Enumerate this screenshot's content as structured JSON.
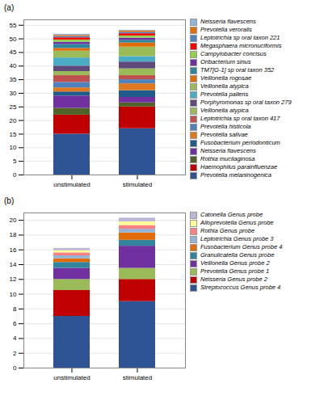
{
  "chart_data": [
    {
      "type": "bar",
      "title": "(a)",
      "stacked": true,
      "grid": true,
      "legend": "right",
      "categories": [
        "unstimulated",
        "stimulated"
      ],
      "ylim": [
        0,
        57
      ],
      "yticks": [
        0,
        5,
        10,
        15,
        20,
        25,
        30,
        35,
        40,
        45,
        50,
        55
      ],
      "series": [
        {
          "name": "Prevotella melaninogenica",
          "color": "#2F5496",
          "values": [
            15.0,
            17.0
          ]
        },
        {
          "name": "Haemophilus parainfluenzae",
          "color": "#C00000",
          "values": [
            7.0,
            8.0
          ]
        },
        {
          "name": "Rothia mucilaginosa",
          "color": "#4F6228",
          "values": [
            2.5,
            1.5
          ]
        },
        {
          "name": "Neisseria flavescens",
          "color": "#7030A0",
          "values": [
            4.5,
            2.0
          ]
        },
        {
          "name": "Fusobacterium periodonticum",
          "color": "#1F5C8B",
          "values": [
            1.5,
            2.5
          ]
        },
        {
          "name": "Prevotella salivae",
          "color": "#E07820",
          "values": [
            1.5,
            2.5
          ]
        },
        {
          "name": "Prevotella histicola",
          "color": "#4F81BD",
          "values": [
            2.0,
            1.5
          ]
        },
        {
          "name": "Leptotrichia sp oral taxon 417",
          "color": "#C0504D",
          "values": [
            2.5,
            1.5
          ]
        },
        {
          "name": "Veillonella atypica",
          "color": "#9BBB59",
          "values": [
            1.5,
            2.5
          ]
        },
        {
          "name": "Porphyromonas sp oral taxon 279",
          "color": "#604A7B",
          "values": [
            2.0,
            2.5
          ]
        },
        {
          "name": "Prevotella pallens",
          "color": "#4BACC6",
          "values": [
            3.0,
            2.0
          ]
        },
        {
          "name": "Veillonella atypica",
          "color": "#9BBB59",
          "values": [
            2.5,
            3.5
          ]
        },
        {
          "name": "Veillonella rogosae",
          "color": "#E26B0A",
          "values": [
            1.0,
            1.5
          ]
        },
        {
          "name": "TM7[G-1] sp oral taxon 352",
          "color": "#31849B",
          "values": [
            1.5,
            1.0
          ]
        },
        {
          "name": "Oribacterium sinus",
          "color": "#7030A0",
          "values": [
            0.8,
            0.8
          ]
        },
        {
          "name": "Campylobacter concisus",
          "color": "#92D050",
          "values": [
            0.8,
            0.8
          ]
        },
        {
          "name": "Megasphaera micronuciformis",
          "color": "#FF0000",
          "values": [
            0.8,
            0.8
          ]
        },
        {
          "name": "Leptotrichia sp oral taxon 221",
          "color": "#4F81BD",
          "values": [
            0.5,
            0.5
          ]
        },
        {
          "name": "Prevotella veroralis",
          "color": "#E26B0A",
          "values": [
            0.4,
            0.5
          ]
        },
        {
          "name": "Neisseria flavescens",
          "color": "#95B3D7",
          "values": [
            0.4,
            0.3
          ]
        }
      ]
    },
    {
      "type": "bar",
      "title": "(b)",
      "stacked": true,
      "grid": true,
      "legend": "right",
      "categories": [
        "unstimulated",
        "stimulated"
      ],
      "ylim": [
        0,
        21
      ],
      "yticks": [
        0,
        2,
        4,
        6,
        8,
        10,
        12,
        14,
        16,
        18,
        20
      ],
      "series": [
        {
          "name": "Streptococcus Genus probe 4",
          "color": "#2F5496",
          "values": [
            7.0,
            9.0
          ]
        },
        {
          "name": "Neisseria Genus probe 2",
          "color": "#C00000",
          "values": [
            3.5,
            3.0
          ]
        },
        {
          "name": "Prevotella Genus probe 1",
          "color": "#9BBB59",
          "values": [
            1.5,
            1.5
          ]
        },
        {
          "name": "Veillonella Genus probe 2",
          "color": "#7030A0",
          "values": [
            1.5,
            3.0
          ]
        },
        {
          "name": "Granulicatella Genus probe",
          "color": "#31849B",
          "values": [
            0.8,
            0.8
          ]
        },
        {
          "name": "Fusobacterium Genus probe 4",
          "color": "#E26B0A",
          "values": [
            0.5,
            1.0
          ]
        },
        {
          "name": "Leptotrichia Genus probe 3",
          "color": "#95B3D7",
          "values": [
            0.4,
            0.5
          ]
        },
        {
          "name": "Rothia Genus probe",
          "color": "#FF8080",
          "values": [
            0.4,
            0.5
          ]
        },
        {
          "name": "Alloprevotella Genus probe",
          "color": "#FFFF99",
          "values": [
            0.3,
            0.5
          ]
        },
        {
          "name": "Catonella Genus probe",
          "color": "#BDB5D5",
          "values": [
            0.3,
            0.5
          ]
        }
      ]
    }
  ]
}
